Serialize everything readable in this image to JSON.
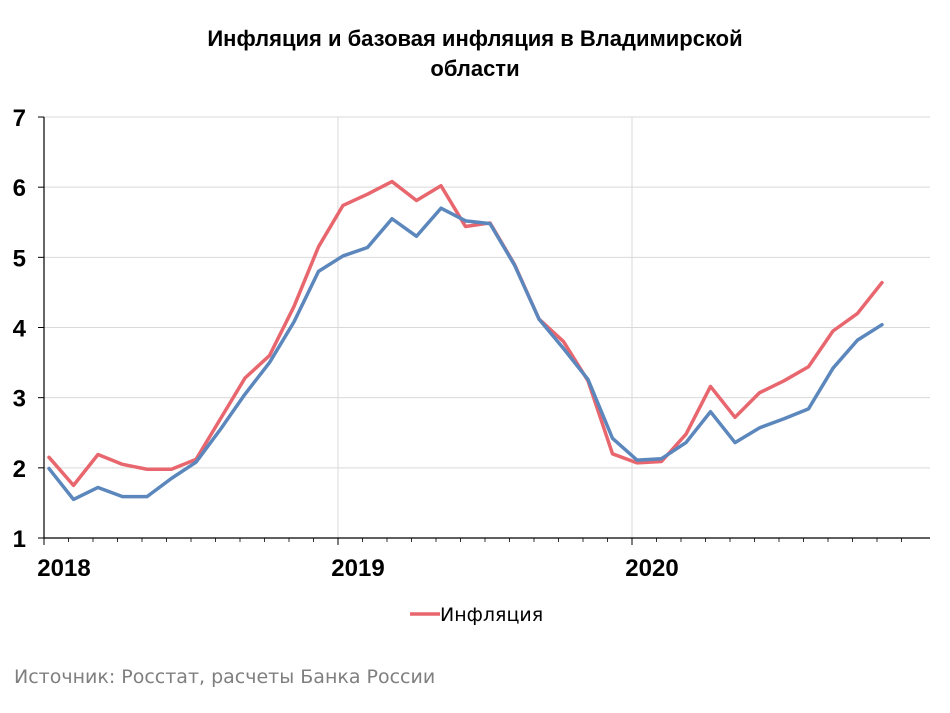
{
  "source": "Источник: Росстат, расчеты Банка России",
  "chart_data": {
    "type": "line",
    "title_lines": [
      "Инфляция и базовая инфляция в Владимирской",
      "области"
    ],
    "x_tick_labels": [
      "2018",
      "2019",
      "2020"
    ],
    "y_tick_labels": [
      "1",
      "2",
      "3",
      "4",
      "5",
      "6",
      "7"
    ],
    "ylim": [
      1,
      7
    ],
    "x_start": "2018-01",
    "grid": "vertical and horizontal",
    "legend_position": "bottom",
    "series": [
      {
        "name": "Инфляция",
        "color": "#e8666e",
        "values": [
          2.15,
          1.75,
          2.19,
          2.05,
          1.98,
          1.98,
          2.12,
          2.7,
          3.28,
          3.6,
          4.3,
          5.15,
          5.74,
          5.9,
          6.08,
          5.81,
          6.02,
          5.44,
          5.49,
          4.9,
          4.12,
          3.8,
          3.24,
          2.2,
          2.07,
          2.09,
          2.48,
          3.16,
          2.72,
          3.07,
          3.24,
          3.44,
          3.95,
          4.2,
          4.64
        ]
      },
      {
        "color": "#5b87bd",
        "values": [
          1.99,
          1.55,
          1.72,
          1.59,
          1.59,
          1.85,
          2.08,
          2.55,
          3.05,
          3.5,
          4.08,
          4.8,
          5.02,
          5.14,
          5.55,
          5.3,
          5.7,
          5.52,
          5.48,
          4.89,
          4.12,
          3.7,
          3.26,
          2.42,
          2.11,
          2.13,
          2.36,
          2.8,
          2.36,
          2.57,
          2.7,
          2.84,
          3.42,
          3.82,
          4.04
        ]
      }
    ]
  }
}
